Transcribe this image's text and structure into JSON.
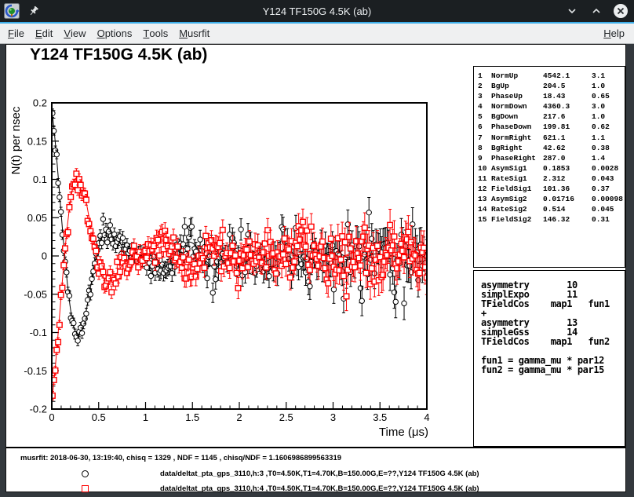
{
  "window": {
    "title": "Y124 TF150G 4.5K (ab)",
    "icons": [
      "app-icon",
      "pin-icon"
    ],
    "controls": [
      "minimize-icon",
      "maximize-icon",
      "close-icon"
    ]
  },
  "menubar": {
    "items": [
      {
        "label": "File",
        "underline": 0
      },
      {
        "label": "Edit",
        "underline": 0
      },
      {
        "label": "View",
        "underline": 0
      },
      {
        "label": "Options",
        "underline": 0
      },
      {
        "label": "Tools",
        "underline": 0
      },
      {
        "label": "Musrfit",
        "underline": 0
      }
    ],
    "help": {
      "label": "Help",
      "underline": 0
    }
  },
  "chart_data": {
    "type": "scatter",
    "title": "Y124 TF150G 4.5K (ab)",
    "xlabel": "Time (μs)",
    "ylabel": "N(t) per nsec",
    "xlim": [
      0,
      4
    ],
    "ylim": [
      -0.2,
      0.2
    ],
    "grid": false,
    "legend_position": "bottom-panel",
    "xticks": {
      "major": [
        0,
        0.5,
        1,
        1.5,
        2,
        2.5,
        3,
        3.5,
        4
      ],
      "labels": [
        "0",
        "0.5",
        "1",
        "1.5",
        "2",
        "2.5",
        "3",
        "3.5",
        "4"
      ],
      "minor_step": 0.1
    },
    "yticks": {
      "major": [
        -0.2,
        -0.15,
        -0.1,
        -0.05,
        0,
        0.05,
        0.1,
        0.15,
        0.2
      ],
      "labels": [
        "-0.2",
        "-0.15",
        "-0.1",
        "-0.05",
        "0",
        "0.05",
        "0.1",
        "0.15",
        "0.2"
      ],
      "minor_step": 0.01
    },
    "series": [
      {
        "name": "data/deltat_pta_gps_3110,h:3",
        "marker": "open-circle",
        "color": "#000000",
        "phase_deg": 18.43,
        "points_dt_us": 0.015,
        "model_components": [
          {
            "shape": "exp-decay-cosine",
            "asymmetry": 0.1853,
            "rate_us": 2.312,
            "freq_MHz": 1.3738
          },
          {
            "shape": "gauss-decay-cosine",
            "asymmetry": 0.01716,
            "rate_us": 0.514,
            "freq_MHz": 1.9832
          }
        ],
        "noise_sigma": {
          "base": 0.0055,
          "growth_per_us": 0.0042
        },
        "seed": 1234567
      },
      {
        "name": "data/deltat_pta_gps_3110,h:4",
        "marker": "open-square",
        "color": "#ff0000",
        "phase_deg": 199.81,
        "points_dt_us": 0.015,
        "model_components": [
          {
            "shape": "exp-decay-cosine",
            "asymmetry": 0.1853,
            "rate_us": 2.312,
            "freq_MHz": 1.3738
          },
          {
            "shape": "gauss-decay-cosine",
            "asymmetry": 0.01716,
            "rate_us": 0.514,
            "freq_MHz": 1.9832
          }
        ],
        "noise_sigma": {
          "base": 0.0055,
          "growth_per_us": 0.0042
        },
        "seed": 7654321
      }
    ]
  },
  "param_box": {
    "rows": [
      [
        "1",
        "NormUp",
        "4542.1",
        "3.1"
      ],
      [
        "2",
        "BgUp",
        "204.5",
        "1.0"
      ],
      [
        "3",
        "PhaseUp",
        "18.43",
        "0.65"
      ],
      [
        "4",
        "NormDown",
        "4360.3",
        "3.0"
      ],
      [
        "5",
        "BgDown",
        "217.6",
        "1.0"
      ],
      [
        "6",
        "PhaseDown",
        "199.81",
        "0.62"
      ],
      [
        "7",
        "NormRight",
        "621.1",
        "1.1"
      ],
      [
        "8",
        "BgRight",
        "42.62",
        "0.38"
      ],
      [
        "9",
        "PhaseRight",
        "287.0",
        "1.4"
      ],
      [
        "10",
        "AsymSig1",
        "0.1853",
        "0.0028"
      ],
      [
        "11",
        "RateSig1",
        "2.312",
        "0.043"
      ],
      [
        "12",
        "FieldSig1",
        "101.36",
        "0.37"
      ],
      [
        "13",
        "AsymSig2",
        "0.01716",
        "0.00098"
      ],
      [
        "14",
        "RateSig2",
        "0.514",
        "0.045"
      ],
      [
        "15",
        "FieldSig2",
        "146.32",
        "0.31"
      ]
    ]
  },
  "theory_box": {
    "lines": [
      "asymmetry       10",
      "simplExpo       11",
      "TFieldCos    map1   fun1",
      "+",
      "asymmetry       13",
      "simpleGss       14",
      "TFieldCos    map1   fun2",
      "",
      "fun1 = gamma_mu * par12",
      "fun2 = gamma_mu * par15"
    ]
  },
  "stats_box": {
    "info": "musrfit: 2018-06-30, 13:19:40, chisq = 1329 , NDF = 1145 , chisq/NDF = 1.1606986899563319",
    "legend": [
      {
        "marker": "open-circle",
        "color": "#000000",
        "label": "data/deltat_pta_gps_3110,h:3 ,T0=4.50K,T1=4.70K,B=150.00G,E=??,Y124 TF150G 4.5K (ab)"
      },
      {
        "marker": "open-square",
        "color": "#ff0000",
        "label": "data/deltat_pta_gps_3110,h:4 ,T0=4.50K,T1=4.70K,B=150.00G,E=??,Y124 TF150G 4.5K (ab)"
      }
    ]
  }
}
